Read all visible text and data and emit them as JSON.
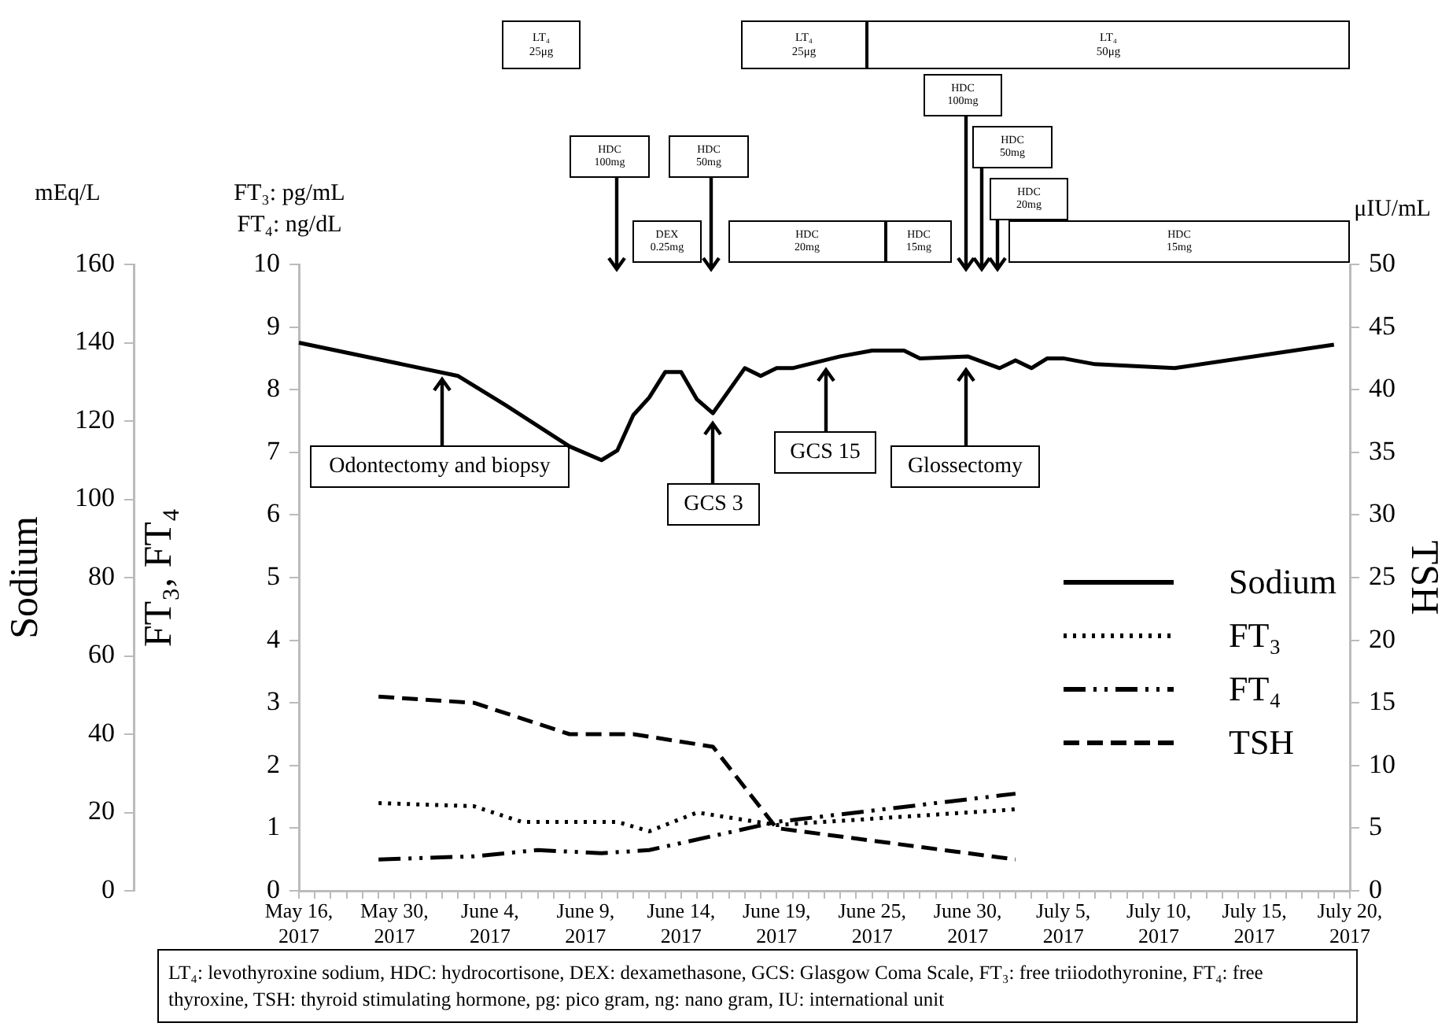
{
  "chart_data": {
    "type": "line",
    "categories": [
      "May 16, 2017",
      null,
      null,
      null,
      null,
      null,
      "May 30, 2017",
      null,
      null,
      null,
      null,
      null,
      "June 4, 2017",
      null,
      null,
      null,
      null,
      null,
      "June 9, 2017",
      null,
      null,
      null,
      null,
      null,
      "June 14, 2017",
      null,
      null,
      null,
      null,
      null,
      "June 19, 2017",
      null,
      null,
      null,
      null,
      null,
      "June 25, 2017",
      null,
      null,
      null,
      null,
      null,
      "June 30, 2017",
      null,
      null,
      null,
      null,
      null,
      "July 5, 2017",
      null,
      null,
      null,
      null,
      null,
      "July 10, 2017",
      null,
      null,
      null,
      null,
      null,
      "July 15, 2017",
      null,
      null,
      null,
      null,
      null,
      "July 20, 2017"
    ],
    "series": [
      {
        "name": "Sodium",
        "color": "#000000",
        "axis": "y3",
        "line_style": "solid",
        "values": [
          140,
          null,
          null,
          null,
          null,
          null,
          null,
          null,
          null,
          null,
          131.5,
          null,
          null,
          124,
          null,
          null,
          null,
          113.5,
          null,
          110,
          112.5,
          121.5,
          126,
          132.5,
          132.5,
          125.5,
          122,
          null,
          133.5,
          131.5,
          133.5,
          133.5,
          null,
          null,
          136.5,
          null,
          138,
          null,
          138,
          136,
          null,
          null,
          136.5,
          null,
          133.5,
          135.5,
          133.5,
          136,
          136,
          null,
          134.5,
          null,
          null,
          null,
          null,
          133.5,
          null,
          null,
          null,
          null,
          null,
          null,
          null,
          null,
          null,
          139.5,
          null
        ]
      },
      {
        "name": "FT₃",
        "color": "#000000",
        "axis": "y",
        "line_style": "dotted",
        "values": [
          null,
          null,
          null,
          null,
          null,
          1.4,
          null,
          null,
          null,
          null,
          null,
          1.35,
          null,
          null,
          1.1,
          null,
          null,
          null,
          null,
          null,
          1.1,
          null,
          0.95,
          null,
          null,
          1.25,
          null,
          null,
          null,
          null,
          1.05,
          null,
          null,
          null,
          null,
          null,
          null,
          null,
          null,
          null,
          null,
          null,
          null,
          null,
          null,
          1.3,
          null,
          null,
          null,
          null,
          null,
          null,
          null,
          null,
          null,
          null,
          null,
          null,
          null,
          null,
          null,
          null,
          null,
          null,
          null,
          null,
          null
        ]
      },
      {
        "name": "FT₄",
        "color": "#000000",
        "axis": "y",
        "line_style": "dashdot",
        "values": [
          null,
          null,
          null,
          null,
          null,
          0.5,
          null,
          null,
          null,
          null,
          null,
          0.55,
          null,
          null,
          null,
          0.65,
          null,
          null,
          null,
          0.6,
          null,
          null,
          0.65,
          null,
          null,
          null,
          null,
          null,
          null,
          null,
          1.1,
          null,
          null,
          null,
          null,
          null,
          null,
          null,
          null,
          null,
          null,
          null,
          null,
          null,
          null,
          1.55,
          null,
          null,
          null,
          null,
          null,
          null,
          null,
          null,
          null,
          null,
          null,
          null,
          null,
          null,
          null,
          null,
          null,
          null,
          null,
          null,
          null
        ]
      },
      {
        "name": "TSH",
        "color": "#000000",
        "axis": "y2",
        "line_style": "dashed",
        "values": [
          null,
          null,
          null,
          null,
          null,
          15.5,
          null,
          null,
          null,
          null,
          null,
          15,
          null,
          null,
          null,
          null,
          null,
          12.5,
          null,
          null,
          null,
          12.5,
          null,
          null,
          null,
          null,
          11.5,
          null,
          null,
          null,
          5,
          null,
          null,
          null,
          null,
          null,
          4,
          null,
          null,
          null,
          null,
          null,
          null,
          null,
          null,
          2.5,
          null,
          null,
          null,
          null,
          null,
          null,
          null,
          null,
          null,
          null,
          null,
          null,
          null,
          null,
          null,
          null,
          null,
          null,
          null,
          null,
          null
        ]
      }
    ],
    "ylabel": "FT₃, FT₄",
    "y2label": "TSH",
    "y3label": "Sodium",
    "ylim": [
      0,
      10
    ],
    "yticks": [
      0,
      1,
      2,
      3,
      4,
      5,
      6,
      7,
      8,
      9,
      10
    ],
    "y2lim": [
      0,
      50
    ],
    "y2ticks": [
      0,
      5,
      10,
      15,
      20,
      25,
      30,
      35,
      40,
      45,
      50
    ],
    "y3lim": [
      0,
      160
    ],
    "y3ticks": [
      0,
      20,
      40,
      60,
      80,
      100,
      120,
      140,
      160
    ],
    "legend": "right",
    "annotations": [
      "mEq/L",
      "FT₃: pg/mL",
      "FT₄: ng/dL",
      "μIU/mL",
      "LT₄\n25μg",
      "LT₄\n25μg",
      "LT₄\n50μg",
      "HDC\n100mg",
      "HDC\n50mg",
      "HDC\n20mg",
      "HDC\n100mg",
      "HDC\n50mg",
      "DEX\n0.25mg",
      "HDC\n20mg",
      "HDC\n15mg",
      "HDC\n15mg",
      {
        "text": "Odontectomy and biopsy",
        "y": 8.2
      },
      {
        "text": "GCS 3",
        "y": 7.5
      },
      {
        "text": "GCS 15",
        "y": 8.35
      },
      "Glossectomy",
      "LT₄: levothyroxine sodium, HDC: hydrocortisone, DEX: dexamethasone, GCS: Glasgow Coma Scale, FT₃: free triiodothyronine, FT₄: free thyroxine, TSH: thyroid stimulating hormone, pg: pico gram, ng: nano gram, IU: international unit"
    ]
  }
}
